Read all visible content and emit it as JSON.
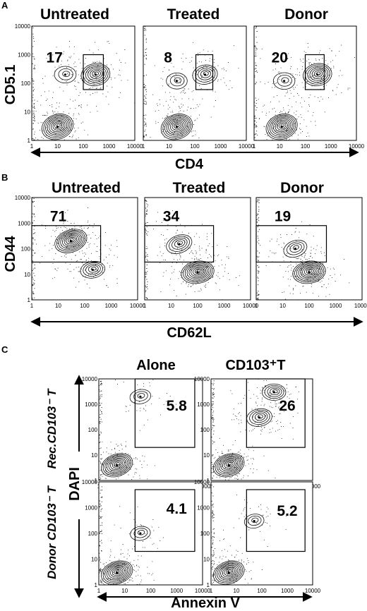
{
  "chart_data": [
    {
      "panel": "A",
      "type": "scatter",
      "plot_kind": "flow-cytometry-contour",
      "xlabel": "CD4",
      "ylabel": "CD5.1",
      "scale": "log",
      "xlim": [
        1,
        10000
      ],
      "ylim": [
        1,
        10000
      ],
      "x_ticks": [
        "1",
        "10",
        "100",
        "1000",
        "10000"
      ],
      "y_ticks": [
        "1",
        "10",
        "100",
        "1000",
        "10000"
      ],
      "facets": [
        {
          "title": "Untreated",
          "gate_pct": "17",
          "populations": [
            {
              "x": 10,
              "y": 3,
              "w": 1.0
            },
            {
              "x": 300,
              "y": 200,
              "w": 0.8
            },
            {
              "x": 20,
              "y": 200,
              "w": 0.35
            }
          ]
        },
        {
          "title": "Treated",
          "gate_pct": "8",
          "populations": [
            {
              "x": 20,
              "y": 3,
              "w": 1.0
            },
            {
              "x": 250,
              "y": 200,
              "w": 0.55
            },
            {
              "x": 20,
              "y": 120,
              "w": 0.3
            }
          ]
        },
        {
          "title": "Donor",
          "gate_pct": "20",
          "populations": [
            {
              "x": 12,
              "y": 3,
              "w": 1.0
            },
            {
              "x": 300,
              "y": 200,
              "w": 0.8
            },
            {
              "x": 15,
              "y": 120,
              "w": 0.35
            }
          ]
        }
      ]
    },
    {
      "panel": "B",
      "type": "scatter",
      "plot_kind": "flow-cytometry-contour",
      "xlabel": "CD62L",
      "ylabel": "CD44",
      "scale": "log",
      "xlim": [
        1,
        10000
      ],
      "ylim": [
        1,
        10000
      ],
      "x_ticks": [
        "1",
        "10",
        "100",
        "1000",
        "10000"
      ],
      "y_ticks": [
        "1",
        "10",
        "100",
        "1000",
        "10000"
      ],
      "facets": [
        {
          "title": "Untreated",
          "gate_pct": "71",
          "populations": [
            {
              "x": 30,
              "y": 200,
              "w": 1.0
            },
            {
              "x": 200,
              "y": 15,
              "w": 0.5
            }
          ]
        },
        {
          "title": "Treated",
          "gate_pct": "34",
          "populations": [
            {
              "x": 20,
              "y": 150,
              "w": 0.6
            },
            {
              "x": 100,
              "y": 12,
              "w": 1.0
            }
          ]
        },
        {
          "title": "Donor",
          "gate_pct": "19",
          "populations": [
            {
              "x": 30,
              "y": 100,
              "w": 0.45
            },
            {
              "x": 100,
              "y": 12,
              "w": 1.0
            }
          ]
        }
      ]
    },
    {
      "panel": "C",
      "type": "scatter",
      "plot_kind": "flow-cytometry-contour",
      "xlabel": "Annexin V",
      "ylabel": "DAPI",
      "scale": "log",
      "xlim": [
        1,
        10000
      ],
      "ylim": [
        1,
        10000
      ],
      "x_ticks": [
        "1",
        "10",
        "100",
        "1000",
        "10000"
      ],
      "y_ticks": [
        "1",
        "10",
        "100",
        "1000",
        "10000"
      ],
      "column_titles": [
        "Alone",
        "CD103⁺T"
      ],
      "row_labels": [
        "Rec.CD103⁻ T",
        "Donor CD103⁻ T"
      ],
      "facets": [
        {
          "row": 0,
          "col": 0,
          "gate_pct": "5.8",
          "populations": [
            {
              "x": 5,
              "y": 4,
              "w": 1.0
            },
            {
              "x": 40,
              "y": 2000,
              "w": 0.3
            }
          ]
        },
        {
          "row": 0,
          "col": 1,
          "gate_pct": "26",
          "populations": [
            {
              "x": 5,
              "y": 4,
              "w": 1.0
            },
            {
              "x": 80,
              "y": 300,
              "w": 0.6
            },
            {
              "x": 300,
              "y": 3000,
              "w": 0.5
            }
          ]
        },
        {
          "row": 1,
          "col": 0,
          "gate_pct": "4.1",
          "populations": [
            {
              "x": 5,
              "y": 3,
              "w": 1.0
            },
            {
              "x": 40,
              "y": 100,
              "w": 0.25
            }
          ]
        },
        {
          "row": 1,
          "col": 1,
          "gate_pct": "5.2",
          "populations": [
            {
              "x": 5,
              "y": 3,
              "w": 1.0
            },
            {
              "x": 50,
              "y": 300,
              "w": 0.25
            }
          ]
        }
      ]
    }
  ]
}
